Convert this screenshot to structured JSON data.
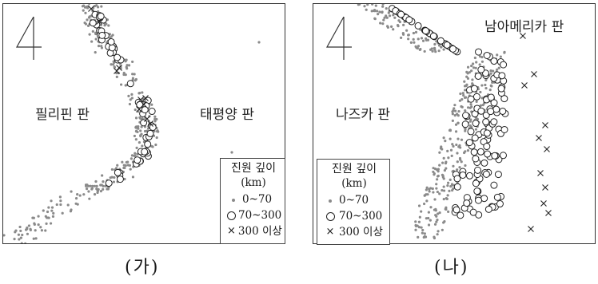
{
  "panel_a": {
    "caption": "(가)",
    "plates": {
      "left": "필리핀 판",
      "right": "태평양 판"
    },
    "legend": {
      "title": "진원 깊이",
      "unit": "(km)",
      "shallow": "0~70",
      "medium": "70~300",
      "deep": "300 이상"
    }
  },
  "panel_b": {
    "caption": "(나)",
    "plates": {
      "left": "나즈카 판",
      "right": "남아메리카 판"
    },
    "legend": {
      "title": "진원 깊이",
      "unit": "(km)",
      "shallow": "0~70",
      "medium": "70~300",
      "deep": "300 이상"
    }
  },
  "symbols": {
    "shallow": "small-grey-dot",
    "medium": "open-circle",
    "deep": "x-cross"
  },
  "colors": {
    "dot": "#8a8a8a",
    "line": "#222222",
    "border": "#333333"
  }
}
